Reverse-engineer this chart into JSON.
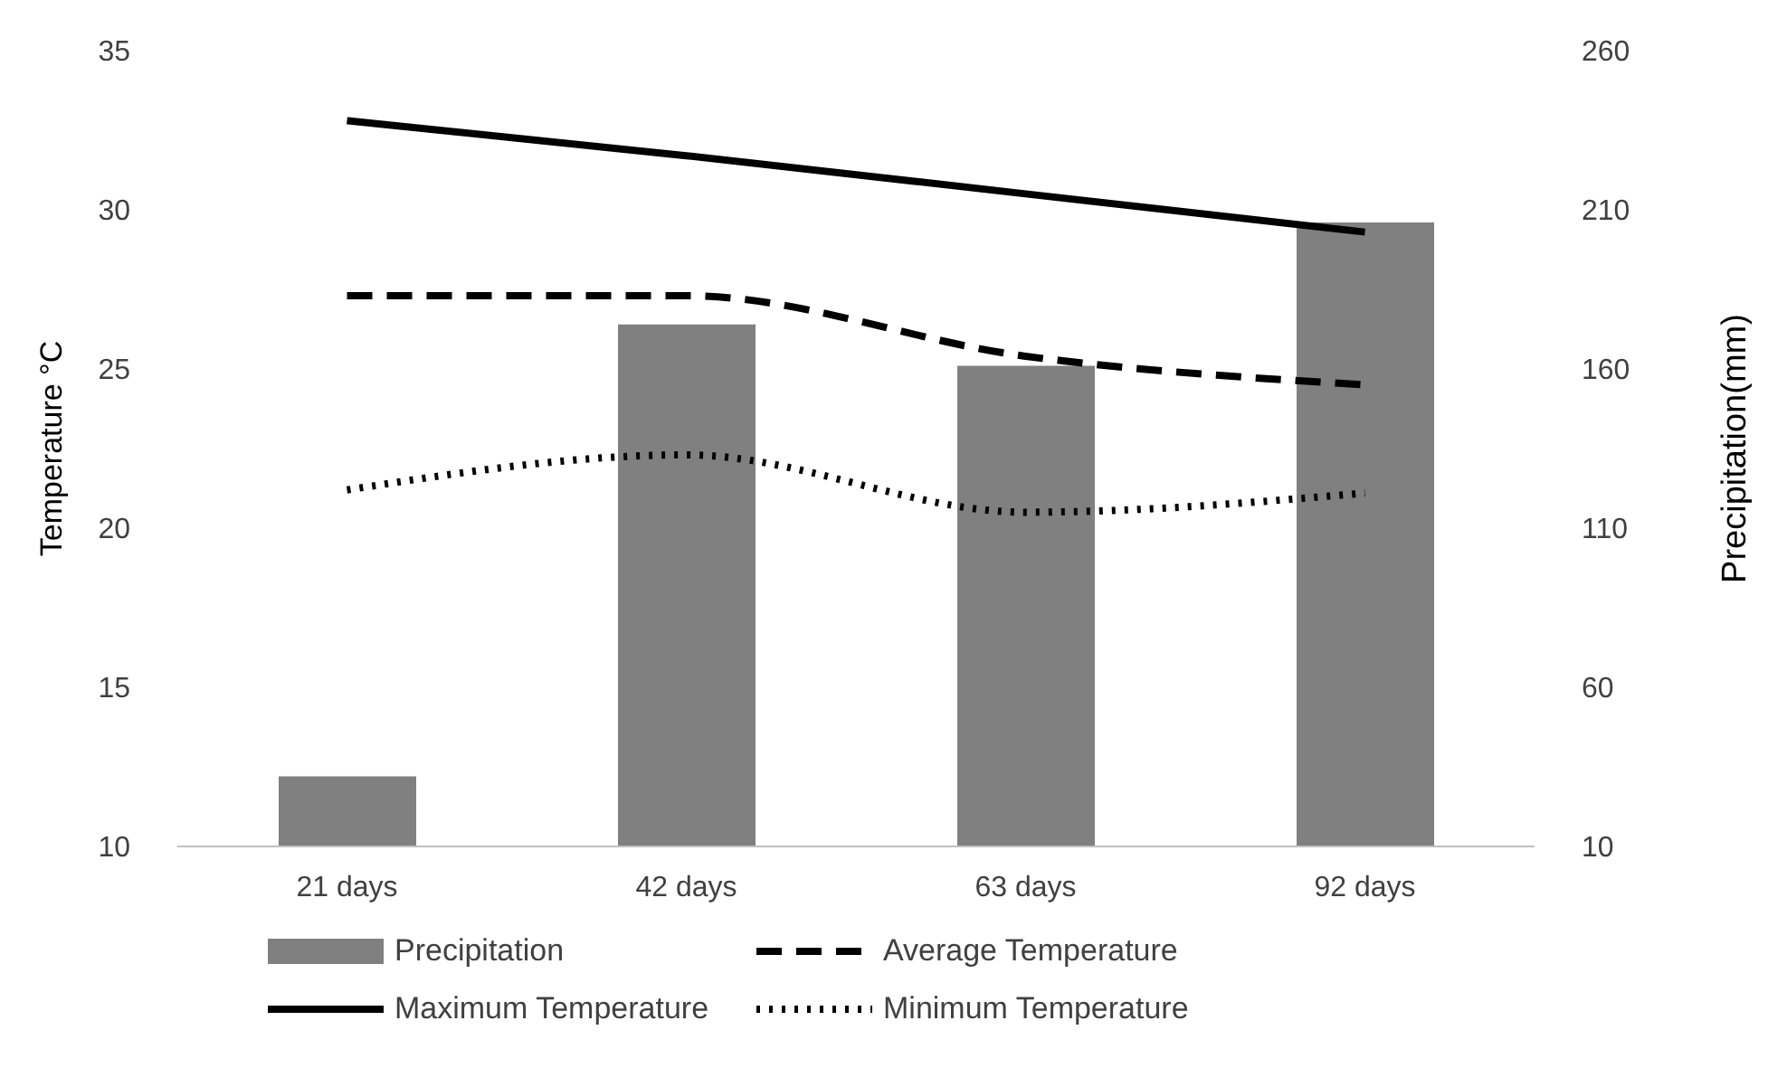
{
  "chart_data": {
    "type": "bar",
    "categories": [
      "21 days",
      "42 days",
      "63 days",
      "92 days"
    ],
    "ylabel": "Temperature °C",
    "y2label": "Precipitation(mm)",
    "ylim": [
      10,
      35
    ],
    "yticks": [
      10,
      15,
      20,
      25,
      30,
      35
    ],
    "y2lim": [
      10,
      260
    ],
    "y2ticks": [
      10,
      60,
      110,
      160,
      210,
      260
    ],
    "grid": false,
    "legend": "bottom",
    "marker": "none",
    "series": [
      {
        "name": "Precipitation",
        "axis": "y2",
        "color": "#808080",
        "values": [
          32,
          174,
          161,
          206
        ]
      },
      {
        "name": "Average Temperature",
        "type": "line",
        "color": "#000000",
        "line_style": "dashed",
        "values": [
          27.3,
          27.3,
          25.4,
          24.5
        ]
      },
      {
        "name": "Maximum Temperature",
        "type": "line",
        "color": "#000000",
        "line_style": "solid",
        "values": [
          32.8,
          31.7,
          30.5,
          29.3
        ]
      },
      {
        "name": "Minimum Temperature",
        "type": "line",
        "color": "#000000",
        "line_style": "dotted",
        "values": [
          21.2,
          22.3,
          20.5,
          21.1
        ]
      }
    ]
  }
}
